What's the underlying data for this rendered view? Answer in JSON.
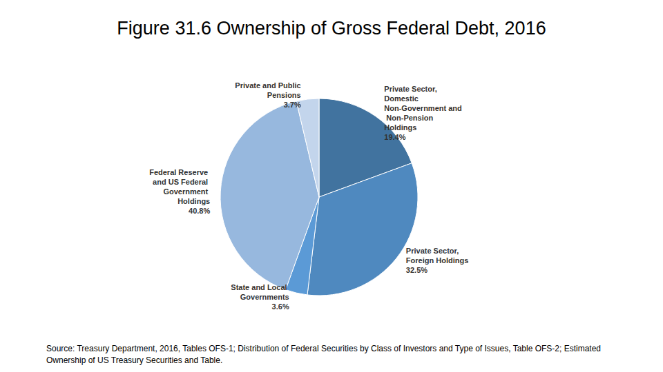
{
  "chart_data": {
    "type": "pie",
    "title": "Figure 31.6 Ownership of Gross Federal Debt, 2016",
    "source": "Source: Treasury Department, 2016, Tables OFS-1; Distribution of Federal Securities by Class of Investors and Type of Issues, Table OFS-2; Estimated Ownership of US Treasury Securities and Table.",
    "categories": [
      "Private Sector, Domestic Non-Government and Non-Pension Holdings",
      "Private Sector, Foreign Holdings",
      "State and Local Governments",
      "Federal Reserve and US Federal Government Holdings",
      "Private and Public Pensions"
    ],
    "values": [
      19.4,
      32.5,
      3.6,
      40.8,
      3.7
    ],
    "value_labels": [
      "19.4%",
      "32.5%",
      "3.6%",
      "40.8%",
      "3.7%"
    ],
    "colors": [
      "#41739f",
      "#4f89bf",
      "#5b9ad6",
      "#97b8de",
      "#c3d5ec"
    ],
    "data_labels": true
  }
}
